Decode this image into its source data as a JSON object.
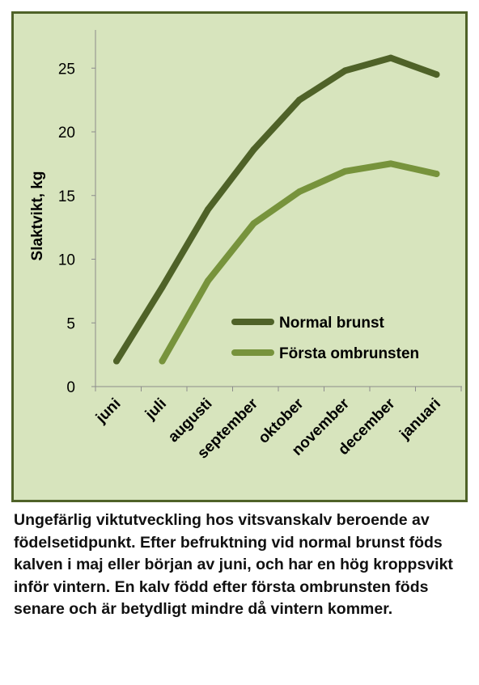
{
  "chart_data": {
    "type": "line",
    "categories": [
      "juni",
      "juli",
      "augusti",
      "september",
      "oktober",
      "november",
      "december",
      "januari"
    ],
    "series": [
      {
        "name": "Normal brunst",
        "color": "#4f6228",
        "values": [
          2.0,
          7.8,
          13.9,
          18.6,
          22.5,
          24.8,
          25.8,
          24.5
        ]
      },
      {
        "name": "Första ombrunsten",
        "color": "#77933c",
        "values": [
          null,
          2.0,
          8.3,
          12.8,
          15.3,
          16.9,
          17.5,
          16.7
        ]
      }
    ],
    "ylabel": "Slaktvikt, kg",
    "ylim": [
      0,
      28
    ],
    "yticks": [
      0,
      5,
      10,
      15,
      20,
      25
    ],
    "grid": false,
    "legend": "right",
    "background": "#d7e4bd",
    "border_color": "#4f6228"
  },
  "caption": "Ungefärlig viktutveckling hos vitsvanskalv beroende av födelsetidpunkt. Efter befruktning vid normal brunst föds kalven i maj eller början av juni, och har en hög kroppsvikt inför vintern. En kalv född efter första ombrunsten föds senare och är betydligt mindre då vintern kommer."
}
